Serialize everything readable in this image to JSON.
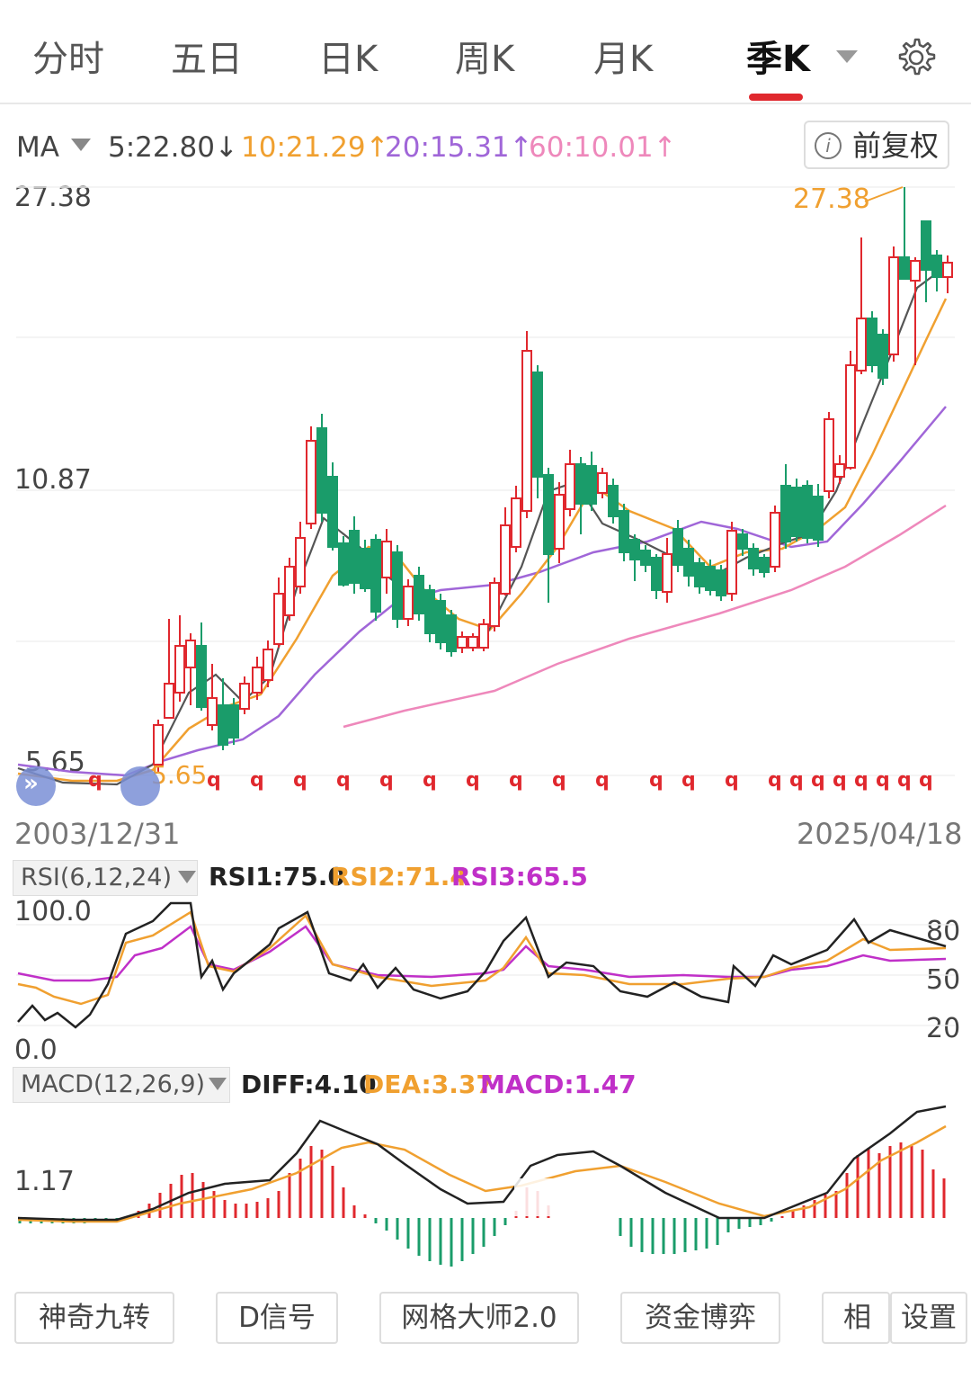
{
  "tabs": [
    {
      "label": "分时",
      "active": false
    },
    {
      "label": "五日",
      "active": false
    },
    {
      "label": "日K",
      "active": false
    },
    {
      "label": "周K",
      "active": false
    },
    {
      "label": "月K",
      "active": false
    },
    {
      "label": "季K",
      "active": true
    }
  ],
  "ma_legend": {
    "label": "MA",
    "ma5": "5:22.80↓",
    "ma10": "10:21.29↑",
    "ma20": "20:15.31↑",
    "ma60": "60:10.01↑",
    "colors": {
      "ma5": "#444444",
      "ma10": "#f0a030",
      "ma20": "#a066d8",
      "ma60": "#ee88bb"
    }
  },
  "fuquan_button": {
    "label": "前复权"
  },
  "price_axis": {
    "high": "27.38",
    "mid": "10.87",
    "low": "5.65"
  },
  "price_markers": {
    "max_label": "27.38",
    "min_label": "5.65"
  },
  "date_range": {
    "start": "2003/12/31",
    "end": "2025/04/18"
  },
  "rsi": {
    "selector": "RSI(6,12,24)",
    "rsi1": "RSI1:75.0",
    "rsi2": "RSI2:71.4",
    "rsi3": "RSI3:65.5",
    "axis_left_top": "100.0",
    "axis_left_bottom": "0.0",
    "axis_right": [
      "80",
      "50",
      "20"
    ]
  },
  "macd": {
    "selector": "MACD(12,26,9)",
    "diff": "DIFF:4.10",
    "dea": "DEA:3.37",
    "macd": "MACD:1.47",
    "axis_label": "1.17"
  },
  "marker_glyph": "q",
  "colors": {
    "up": "#e0282e",
    "down": "#1a9c6a",
    "accent": "#e0282e"
  },
  "toolbar": {
    "buttons": [
      "神奇九转",
      "D信号",
      "网格大师2.0",
      "资金博弈",
      "相"
    ],
    "settings": "设置"
  }
}
